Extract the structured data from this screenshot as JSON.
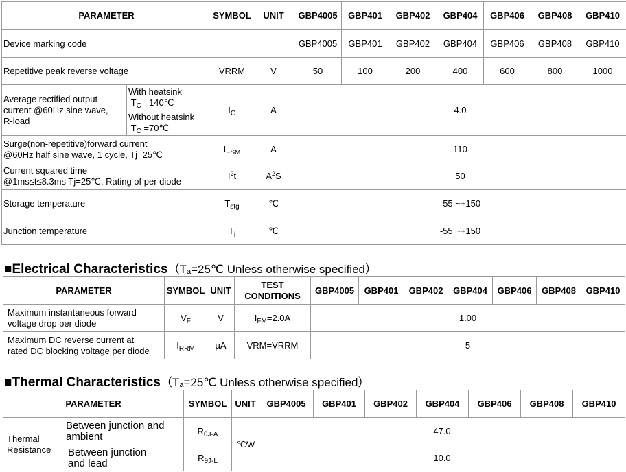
{
  "ratings": {
    "header": [
      "PARAMETER",
      "SYMBOL",
      "UNIT",
      "GBP4005",
      "GBP401",
      "GBP402",
      "GBP404",
      "GBP406",
      "GBP408",
      "GBP410"
    ],
    "rows": [
      {
        "parameter": "Device marking code",
        "values": [
          "GBP4005",
          "GBP401",
          "GBP402",
          "GBP404",
          "GBP406",
          "GBP408",
          "GBP410"
        ]
      },
      {
        "parameter": "Repetitive peak reverse voltage",
        "symbol": "VRRM",
        "unit": "V",
        "values": [
          "50",
          "100",
          "200",
          "400",
          "600",
          "800",
          "1000"
        ]
      },
      {
        "parameter_lines": [
          "Average rectified output",
          "current @60Hz sine wave,",
          "R-load"
        ],
        "conditions": [
          {
            "text": "With heatsink",
            "tc": {
              "base": "T",
              "sub": "C",
              "rest": " =140℃"
            }
          },
          {
            "text": "Without heatsink",
            "tc": {
              "base": "T",
              "sub": "C",
              "rest": " =70℃"
            }
          }
        ],
        "symbol": {
          "base": "I",
          "sub": "O"
        },
        "unit": "A",
        "value": "4.0"
      },
      {
        "parameter_lines": [
          "Surge(non-repetitive)forward current",
          "@60Hz half sine wave, 1 cycle, Tj=25℃"
        ],
        "symbol": {
          "base": "I",
          "sub": "FSM"
        },
        "unit": "A",
        "value": "110"
      },
      {
        "parameter_lines": [
          "Current squared time",
          "@1ms≤t≤8.3ms Tj=25℃, Rating of per diode"
        ],
        "symbol": {
          "base": "I",
          "sup": "2",
          "rest": "t"
        },
        "unit": {
          "base": "A",
          "sup": "2",
          "rest": "S"
        },
        "value": "50"
      },
      {
        "parameter": "Storage temperature",
        "symbol": {
          "base": "T",
          "sub": "stg"
        },
        "unit": "℃",
        "value": "-55 ~+150"
      },
      {
        "parameter": "Junction temperature",
        "symbol": {
          "base": "T",
          "sub": "j"
        },
        "unit": "℃",
        "value": "-55 ~+150"
      }
    ]
  },
  "electrical": {
    "heading": {
      "title": "■Electrical Characteristics",
      "note": {
        "prefix": "（T",
        "sub": "a",
        "suffix": "=25℃ Unless otherwise specified）"
      }
    },
    "header": [
      "PARAMETER",
      "SYMBOL",
      "UNIT",
      "TEST CONDITIONS",
      "GBP4005",
      "GBP401",
      "GBP402",
      "GBP404",
      "GBP406",
      "GBP408",
      "GBP410"
    ],
    "rows": [
      {
        "parameter_lines": [
          "Maximum instantaneous forward",
          "voltage drop per diode"
        ],
        "symbol": {
          "base": "V",
          "sub": "F"
        },
        "unit": "V",
        "conditions": {
          "base": "I",
          "sub": "FM",
          "rest": "=2.0A"
        },
        "value": "1.00"
      },
      {
        "parameter_lines": [
          "Maximum DC reverse current at",
          "rated DC blocking voltage per diode"
        ],
        "symbol": {
          "base": "I",
          "sub": "RRM"
        },
        "unit": "μA",
        "conditions": "VRM=VRRM",
        "value": "5"
      }
    ]
  },
  "thermal": {
    "heading": {
      "title": "■Thermal Characteristics",
      "note": {
        "prefix": "（T",
        "sub": "a",
        "suffix": "=25℃ Unless otherwise specified）"
      }
    },
    "header": [
      "PARAMETER",
      "SYMBOL",
      "UNIT",
      "GBP4005",
      "GBP401",
      "GBP402",
      "GBP404",
      "GBP406",
      "GBP408",
      "GBP410"
    ],
    "group": [
      "Thermal",
      "Resistance"
    ],
    "unit": "℃/W",
    "rows": [
      {
        "parameter_lines": [
          "Between junction and",
          "ambient"
        ],
        "symbol": {
          "base": "R",
          "sub": "θJ-A"
        },
        "value": "47.0"
      },
      {
        "parameter_lines": [
          "Between junction",
          "and lead"
        ],
        "symbol": {
          "base": "R",
          "sub": "θJ-L"
        },
        "value": "10.0"
      }
    ]
  }
}
